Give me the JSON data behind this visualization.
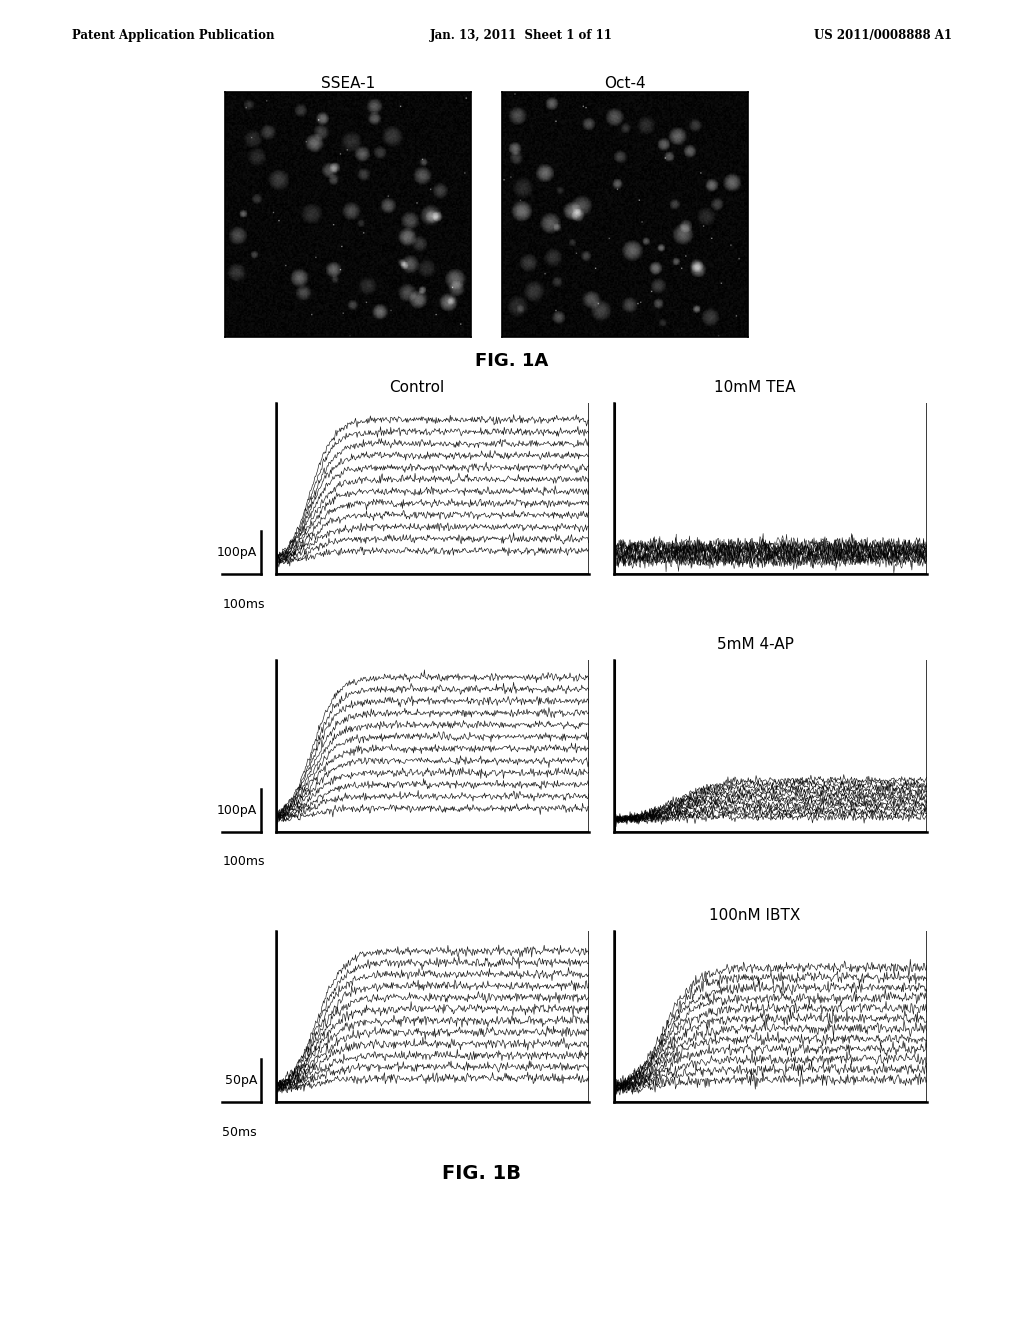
{
  "header_left": "Patent Application Publication",
  "header_center": "Jan. 13, 2011  Sheet 1 of 11",
  "header_right": "US 2011/0008888 A1",
  "fig1a_label": "FIG. 1A",
  "fig1b_label": "FIG. 1B",
  "ssea_label": "SSEA-1",
  "oct_label": "Oct-4",
  "panel_labels": [
    "Control",
    "10mM TEA",
    "5mM 4-AP",
    "100nM IBTX"
  ],
  "bg_color": "#ffffff"
}
